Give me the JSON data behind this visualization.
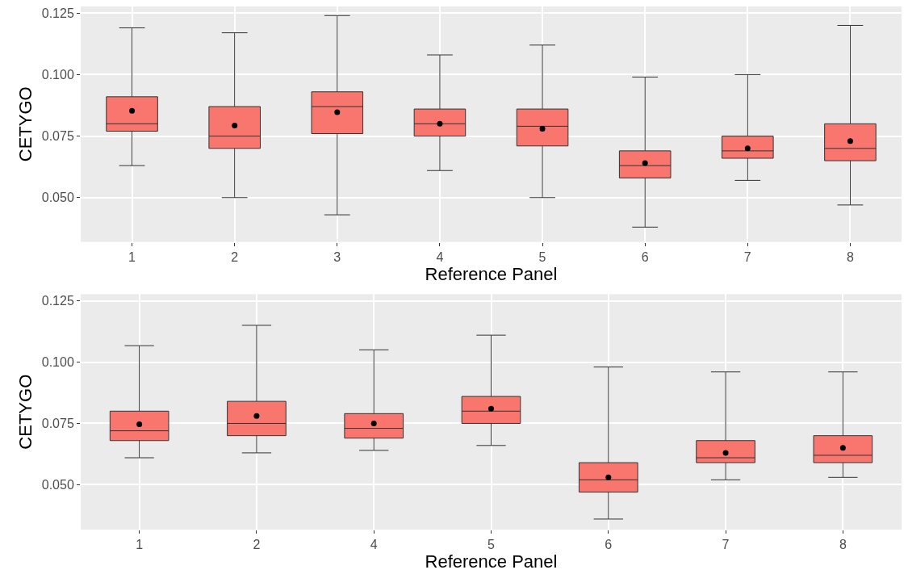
{
  "chart_data": [
    {
      "type": "box",
      "xlabel": "Reference Panel",
      "ylabel": "CETYGO",
      "categories": [
        "1",
        "2",
        "3",
        "4",
        "5",
        "6",
        "7",
        "8"
      ],
      "color": "#f8766d",
      "ylim": [
        0.032,
        0.1277
      ],
      "yticks": [
        {
          "value": 0.05,
          "label": "0.050"
        },
        {
          "value": 0.075,
          "label": "0.075"
        },
        {
          "value": 0.1,
          "label": "0.100"
        },
        {
          "value": 0.125,
          "label": "0.125"
        }
      ],
      "grid": true,
      "marker": "circle",
      "boxes": [
        {
          "low": 0.063,
          "q1": 0.077,
          "median": 0.08,
          "q3": 0.091,
          "high": 0.119,
          "mean": 0.0853
        },
        {
          "low": 0.05,
          "q1": 0.07,
          "median": 0.075,
          "q3": 0.087,
          "high": 0.117,
          "mean": 0.0793
        },
        {
          "low": 0.043,
          "q1": 0.076,
          "median": 0.087,
          "q3": 0.093,
          "high": 0.124,
          "mean": 0.0847
        },
        {
          "low": 0.061,
          "q1": 0.075,
          "median": 0.08,
          "q3": 0.086,
          "high": 0.108,
          "mean": 0.08
        },
        {
          "low": 0.05,
          "q1": 0.071,
          "median": 0.079,
          "q3": 0.086,
          "high": 0.112,
          "mean": 0.078
        },
        {
          "low": 0.038,
          "q1": 0.058,
          "median": 0.063,
          "q3": 0.069,
          "high": 0.099,
          "mean": 0.064
        },
        {
          "low": 0.057,
          "q1": 0.066,
          "median": 0.069,
          "q3": 0.075,
          "high": 0.1,
          "mean": 0.07
        },
        {
          "low": 0.047,
          "q1": 0.065,
          "median": 0.07,
          "q3": 0.08,
          "high": 0.12,
          "mean": 0.073
        }
      ]
    },
    {
      "type": "box",
      "xlabel": "Reference Panel",
      "ylabel": "CETYGO",
      "categories": [
        "1",
        "2",
        "4",
        "5",
        "6",
        "7",
        "8"
      ],
      "color": "#f8766d",
      "ylim": [
        0.0317,
        0.1277
      ],
      "yticks": [
        {
          "value": 0.05,
          "label": "0.050"
        },
        {
          "value": 0.075,
          "label": "0.075"
        },
        {
          "value": 0.1,
          "label": "0.100"
        },
        {
          "value": 0.125,
          "label": "0.125"
        }
      ],
      "grid": true,
      "marker": "circle",
      "boxes": [
        {
          "low": 0.061,
          "q1": 0.068,
          "median": 0.072,
          "q3": 0.08,
          "high": 0.1067,
          "mean": 0.0747
        },
        {
          "low": 0.063,
          "q1": 0.07,
          "median": 0.075,
          "q3": 0.084,
          "high": 0.115,
          "mean": 0.078
        },
        {
          "low": 0.064,
          "q1": 0.069,
          "median": 0.073,
          "q3": 0.079,
          "high": 0.105,
          "mean": 0.075
        },
        {
          "low": 0.066,
          "q1": 0.075,
          "median": 0.08,
          "q3": 0.086,
          "high": 0.111,
          "mean": 0.081
        },
        {
          "low": 0.036,
          "q1": 0.047,
          "median": 0.052,
          "q3": 0.059,
          "high": 0.098,
          "mean": 0.053
        },
        {
          "low": 0.052,
          "q1": 0.059,
          "median": 0.061,
          "q3": 0.068,
          "high": 0.096,
          "mean": 0.063
        },
        {
          "low": 0.053,
          "q1": 0.059,
          "median": 0.062,
          "q3": 0.07,
          "high": 0.096,
          "mean": 0.065
        }
      ]
    }
  ]
}
